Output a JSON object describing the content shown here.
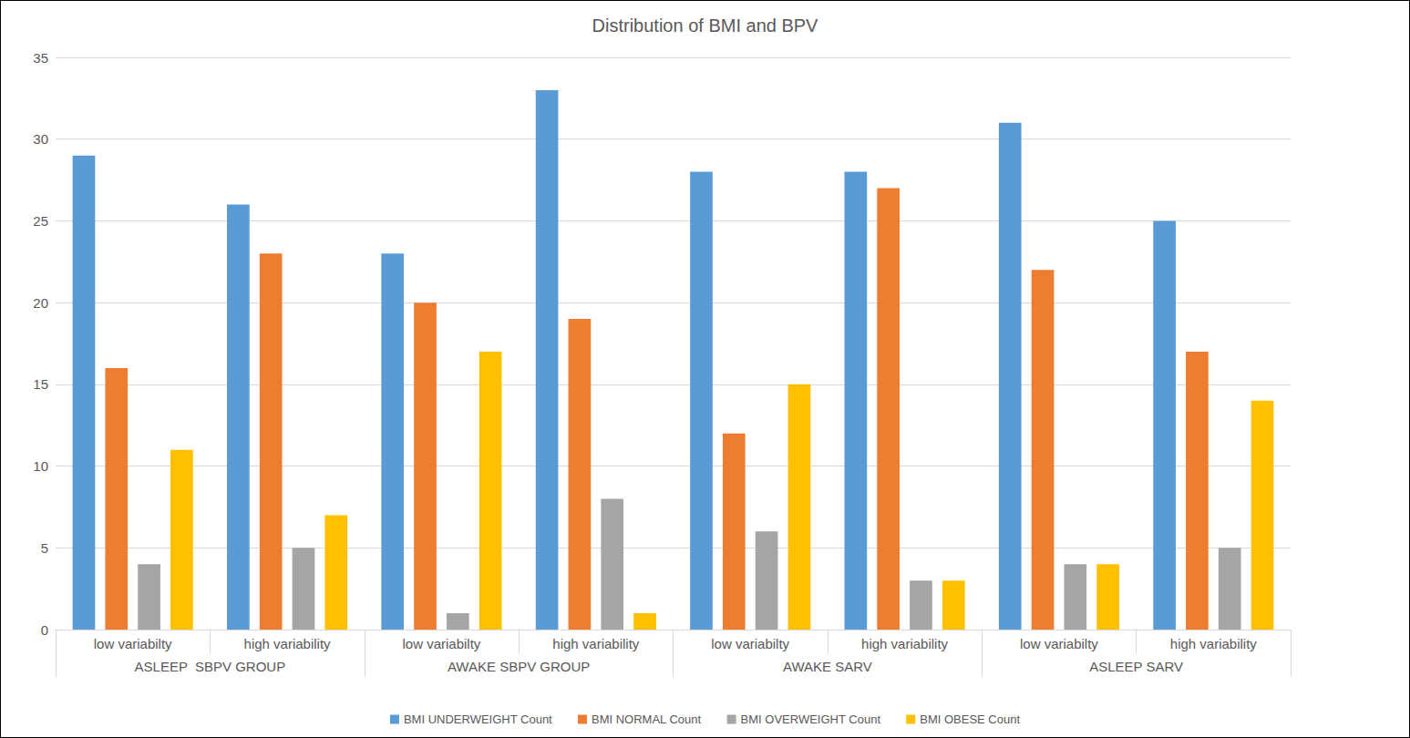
{
  "chart_data": {
    "type": "bar",
    "title": "Distribution of BMI and BPV",
    "categories": [
      "low variabilty",
      "high variability",
      "low variabilty",
      "high variability",
      "low variabilty",
      "high variability",
      "low variabilty",
      "high variability"
    ],
    "category_groups": [
      "ASLEEP  SBPV GROUP",
      "AWAKE SBPV GROUP",
      "AWAKE SARV",
      "ASLEEP SARV"
    ],
    "series": [
      {
        "name": "BMI UNDERWEIGHT Count",
        "color": "#5b9bd5",
        "values": [
          29,
          26,
          23,
          33,
          28,
          28,
          31,
          25
        ]
      },
      {
        "name": "BMI NORMAL Count",
        "color": "#ed7d31",
        "values": [
          16,
          23,
          20,
          19,
          12,
          27,
          22,
          17
        ]
      },
      {
        "name": "BMI OVERWEIGHT Count",
        "color": "#a5a5a5",
        "values": [
          4,
          5,
          1,
          8,
          6,
          3,
          4,
          5
        ]
      },
      {
        "name": "BMI OBESE Count",
        "color": "#ffc000",
        "values": [
          11,
          7,
          17,
          1,
          15,
          3,
          4,
          14
        ]
      }
    ],
    "ylim": [
      0,
      35
    ],
    "yticks": [
      0,
      5,
      10,
      15,
      20,
      25,
      30,
      35
    ],
    "grid": true,
    "legend": "bottom"
  }
}
